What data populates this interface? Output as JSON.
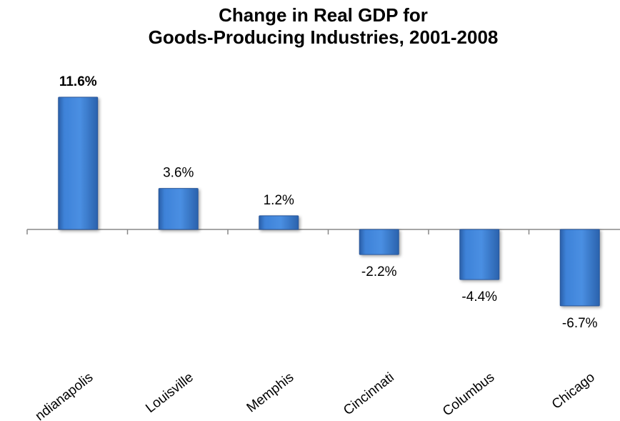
{
  "chart_data": {
    "type": "bar",
    "title_line1": "Change in Real GDP for",
    "title_line2": "Goods-Producing Industries, 2001-2008",
    "categories": [
      "Indianapolis",
      "Louisville",
      "Memphis",
      "Cincinnati",
      "Columbus",
      "Chicago"
    ],
    "category_labels": [
      "ndianapolis",
      "Louisville",
      "Memphis",
      "Cincinnati",
      "Columbus",
      "Chicago"
    ],
    "values": [
      11.6,
      3.6,
      1.2,
      -2.2,
      -4.4,
      -6.7
    ],
    "value_labels": [
      "11.6%",
      "3.6%",
      "1.2%",
      "-2.2%",
      "-4.4%",
      "-6.7%"
    ],
    "highlight_index": 0,
    "bar_color": "#3a7bd5",
    "grid": false,
    "ylim": [
      -8,
      14
    ]
  }
}
